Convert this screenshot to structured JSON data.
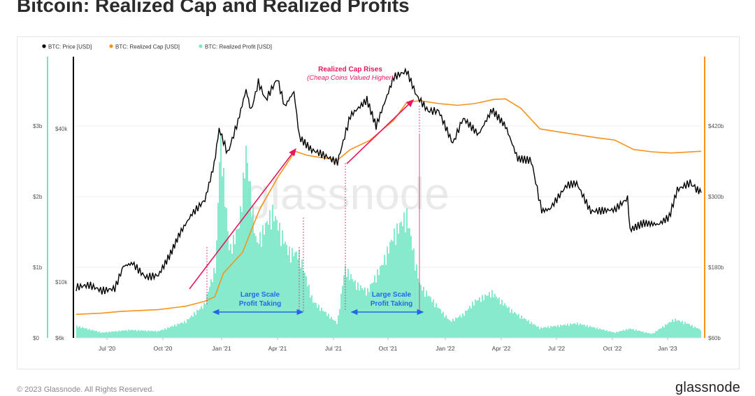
{
  "title": "Bitcoin: Realized Cap and Realized Profits",
  "footer": {
    "copyright": "© 2023 Glassnode. All Rights Reserved.",
    "brand": "glassnode"
  },
  "watermark": "glassnode",
  "colors": {
    "price": "#000000",
    "realized_cap": "#f7931a",
    "profit": "#7be8c8",
    "profit_axis": "#6ee6c6",
    "annotation_red": "#e8175d",
    "annotation_blue": "#2566e8"
  },
  "chart_data": {
    "type": "line",
    "legend": [
      {
        "label": "BTC: Price [USD]",
        "color": "#000000"
      },
      {
        "label": "BTC: Realized Cap [USD]",
        "color": "#f7931a"
      },
      {
        "label": "BTC: Realized Profit [USD]",
        "color": "#7be8c8"
      }
    ],
    "x_ticks": [
      "Jul '20",
      "Oct '20",
      "Jan '21",
      "Apr '21",
      "Jul '21",
      "Oct '21",
      "Jan '22",
      "Apr '22",
      "Jul '22",
      "Oct '22",
      "Jan '23"
    ],
    "left_axis_profit": {
      "ticks": [
        "$0",
        "$1b",
        "$2b",
        "$3b"
      ]
    },
    "price_axis": {
      "scale": "log",
      "ticks": [
        "$6k",
        "$10k",
        "$40k"
      ]
    },
    "right_axis_realized_cap": {
      "ticks": [
        "$60b",
        "$180b",
        "$300b",
        "$420b"
      ]
    },
    "series": [
      {
        "name": "BTC: Price [USD]",
        "points": [
          [
            "2020-05-20",
            9500
          ],
          [
            "2020-06-10",
            9700
          ],
          [
            "2020-07-01",
            9200
          ],
          [
            "2020-07-22",
            9400
          ],
          [
            "2020-08-05",
            11500
          ],
          [
            "2020-08-20",
            11800
          ],
          [
            "2020-09-10",
            10400
          ],
          [
            "2020-10-01",
            10600
          ],
          [
            "2020-10-21",
            12900
          ],
          [
            "2020-11-05",
            15500
          ],
          [
            "2020-11-25",
            18500
          ],
          [
            "2020-12-16",
            21000
          ],
          [
            "2020-12-31",
            29000
          ],
          [
            "2021-01-08",
            40000
          ],
          [
            "2021-01-22",
            32000
          ],
          [
            "2021-02-08",
            43000
          ],
          [
            "2021-02-21",
            57000
          ],
          [
            "2021-03-01",
            47000
          ],
          [
            "2021-03-13",
            61000
          ],
          [
            "2021-03-25",
            52000
          ],
          [
            "2021-04-13",
            63000
          ],
          [
            "2021-04-25",
            49000
          ],
          [
            "2021-05-10",
            56000
          ],
          [
            "2021-05-19",
            37000
          ],
          [
            "2021-06-08",
            33000
          ],
          [
            "2021-06-22",
            32000
          ],
          [
            "2021-07-20",
            29500
          ],
          [
            "2021-08-10",
            45000
          ],
          [
            "2021-09-06",
            52000
          ],
          [
            "2021-09-21",
            41000
          ],
          [
            "2021-10-20",
            64000
          ],
          [
            "2021-11-10",
            67500
          ],
          [
            "2021-11-26",
            54000
          ],
          [
            "2021-12-15",
            47000
          ],
          [
            "2022-01-01",
            47000
          ],
          [
            "2022-01-24",
            35000
          ],
          [
            "2022-02-10",
            44000
          ],
          [
            "2022-03-07",
            38000
          ],
          [
            "2022-03-29",
            47500
          ],
          [
            "2022-04-20",
            41000
          ],
          [
            "2022-05-10",
            30500
          ],
          [
            "2022-06-01",
            30000
          ],
          [
            "2022-06-18",
            19000
          ],
          [
            "2022-07-01",
            19300
          ],
          [
            "2022-07-29",
            24000
          ],
          [
            "2022-08-14",
            24400
          ],
          [
            "2022-09-06",
            18900
          ],
          [
            "2022-09-20",
            19000
          ],
          [
            "2022-10-15",
            19200
          ],
          [
            "2022-11-05",
            21300
          ],
          [
            "2022-11-09",
            16000
          ],
          [
            "2022-12-01",
            17000
          ],
          [
            "2022-12-25",
            16800
          ],
          [
            "2023-01-12",
            18000
          ],
          [
            "2023-01-25",
            23000
          ],
          [
            "2023-02-01",
            23500
          ],
          [
            "2023-02-15",
            24500
          ],
          [
            "2023-02-25",
            23200
          ],
          [
            "2023-03-05",
            22400
          ]
        ]
      },
      {
        "name": "BTC: Realized Cap [USD]",
        "points": [
          [
            "2020-05-20",
            100
          ],
          [
            "2020-07-01",
            102
          ],
          [
            "2020-08-01",
            105
          ],
          [
            "2020-10-01",
            108
          ],
          [
            "2020-11-15",
            114
          ],
          [
            "2020-12-15",
            122
          ],
          [
            "2021-01-01",
            130
          ],
          [
            "2021-01-15",
            170
          ],
          [
            "2021-02-15",
            205
          ],
          [
            "2021-03-15",
            278
          ],
          [
            "2021-04-15",
            335
          ],
          [
            "2021-05-12",
            377
          ],
          [
            "2021-06-01",
            370
          ],
          [
            "2021-07-01",
            365
          ],
          [
            "2021-07-20",
            362
          ],
          [
            "2021-08-10",
            380
          ],
          [
            "2021-09-10",
            395
          ],
          [
            "2021-10-20",
            430
          ],
          [
            "2021-11-10",
            460
          ],
          [
            "2021-12-01",
            463
          ],
          [
            "2022-01-01",
            458
          ],
          [
            "2022-02-01",
            455
          ],
          [
            "2022-03-01",
            458
          ],
          [
            "2022-04-01",
            465
          ],
          [
            "2022-04-20",
            466
          ],
          [
            "2022-05-15",
            450
          ],
          [
            "2022-06-15",
            415
          ],
          [
            "2022-07-15",
            410
          ],
          [
            "2022-08-15",
            405
          ],
          [
            "2022-09-15",
            400
          ],
          [
            "2022-10-15",
            396
          ],
          [
            "2022-11-15",
            380
          ],
          [
            "2022-12-15",
            376
          ],
          [
            "2023-01-15",
            374
          ],
          [
            "2023-03-05",
            377
          ]
        ]
      },
      {
        "name": "BTC: Realized Profit [USD]",
        "points": [
          [
            "2020-05-20",
            0.18
          ],
          [
            "2020-07-01",
            0.08
          ],
          [
            "2020-08-15",
            0.12
          ],
          [
            "2020-10-01",
            0.1
          ],
          [
            "2020-11-15",
            0.25
          ],
          [
            "2020-12-15",
            0.5
          ],
          [
            "2021-01-03",
            1.1
          ],
          [
            "2021-01-10",
            3.05
          ],
          [
            "2021-01-25",
            1.3
          ],
          [
            "2021-02-10",
            1.7
          ],
          [
            "2021-02-21",
            2.8
          ],
          [
            "2021-03-10",
            1.4
          ],
          [
            "2021-04-05",
            1.9
          ],
          [
            "2021-04-14",
            1.7
          ],
          [
            "2021-05-01",
            1.3
          ],
          [
            "2021-05-19",
            1.25
          ],
          [
            "2021-06-10",
            0.55
          ],
          [
            "2021-07-20",
            0.22
          ],
          [
            "2021-08-01",
            1.05
          ],
          [
            "2021-08-20",
            0.8
          ],
          [
            "2021-09-07",
            0.7
          ],
          [
            "2021-10-01",
            1.1
          ],
          [
            "2021-10-20",
            1.55
          ],
          [
            "2021-11-10",
            1.85
          ],
          [
            "2021-12-01",
            0.8
          ],
          [
            "2022-01-01",
            0.45
          ],
          [
            "2022-01-20",
            0.25
          ],
          [
            "2022-02-10",
            0.35
          ],
          [
            "2022-03-01",
            0.55
          ],
          [
            "2022-03-29",
            0.68
          ],
          [
            "2022-05-01",
            0.4
          ],
          [
            "2022-06-15",
            0.15
          ],
          [
            "2022-08-15",
            0.22
          ],
          [
            "2022-10-15",
            0.08
          ],
          [
            "2022-11-09",
            0.14
          ],
          [
            "2022-12-15",
            0.06
          ],
          [
            "2023-01-20",
            0.28
          ],
          [
            "2023-02-10",
            0.22
          ],
          [
            "2023-03-05",
            0.12
          ]
        ]
      }
    ],
    "annotations": [
      {
        "type": "label",
        "text": "Realized Cap Rises",
        "subtext": "(Cheap Coins Valued Higher)",
        "color": "#e8175d"
      },
      {
        "type": "label",
        "text": "Large Scale",
        "subtext": "Profit Taking",
        "color": "#2566e8"
      },
      {
        "type": "label",
        "text": "Large Scale",
        "subtext": "Profit Taking",
        "color": "#2566e8"
      }
    ]
  }
}
